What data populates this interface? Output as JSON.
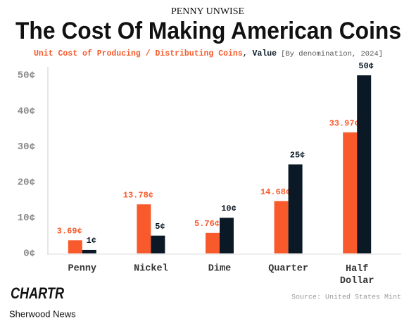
{
  "chart_data": {
    "type": "bar",
    "kicker": "PENNY UNWISE",
    "title": "The Cost Of Making American Coins",
    "legend_separator": ", ",
    "subtitle_note": "[By denomination, 2024]",
    "categories": [
      "Penny",
      "Nickel",
      "Dime",
      "Quarter",
      "Half Dollar"
    ],
    "series": [
      {
        "name": "Unit Cost of Producing / Distributing Coins",
        "color": "#f85a2b",
        "values": [
          3.69,
          13.78,
          5.76,
          14.68,
          33.97
        ],
        "value_labels": [
          "3.69¢",
          "13.78¢",
          "5.76¢",
          "14.68¢",
          "33.97¢"
        ]
      },
      {
        "name": "Value",
        "color": "#0b1926",
        "values": [
          1,
          5,
          10,
          25,
          50
        ],
        "value_labels": [
          "1¢",
          "5¢",
          "10¢",
          "25¢",
          "50¢"
        ]
      }
    ],
    "ylim": [
      0,
      50
    ],
    "yticks": [
      {
        "value": 0,
        "label": "0¢"
      },
      {
        "value": 10,
        "label": "10¢"
      },
      {
        "value": 20,
        "label": "20¢"
      },
      {
        "value": 30,
        "label": "30¢"
      },
      {
        "value": 40,
        "label": "40¢"
      },
      {
        "value": 50,
        "label": "50¢"
      }
    ],
    "grid": false,
    "source": "Source: United States Mint",
    "brand": "CHARTR",
    "publisher": "Sherwood News"
  }
}
